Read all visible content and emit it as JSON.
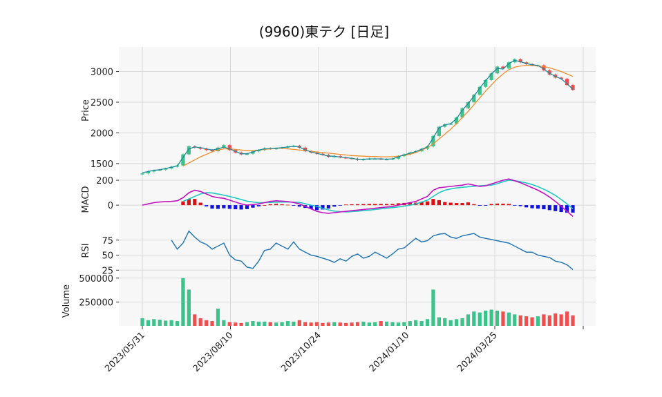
{
  "chart_data": {
    "type": "candlestick",
    "title": "(9960)東テク  [日足]",
    "x_ticks": [
      "2023/05/31",
      "2023/08/10",
      "2023/10/24",
      "2024/01/10",
      "2024/03/25"
    ],
    "price": {
      "ylabel": "Price",
      "yticks": [
        1500,
        2000,
        2500,
        3000
      ],
      "ylim": [
        1330,
        3400
      ],
      "close": [
        1340,
        1370,
        1390,
        1400,
        1420,
        1450,
        1470,
        1650,
        1780,
        1760,
        1740,
        1720,
        1700,
        1760,
        1800,
        1720,
        1680,
        1650,
        1660,
        1700,
        1720,
        1750,
        1740,
        1750,
        1760,
        1780,
        1790,
        1760,
        1700,
        1680,
        1660,
        1640,
        1610,
        1620,
        1600,
        1590,
        1580,
        1560,
        1570,
        1580,
        1580,
        1570,
        1570,
        1580,
        1620,
        1650,
        1680,
        1700,
        1740,
        1780,
        1950,
        2100,
        2140,
        2150,
        2250,
        2400,
        2500,
        2620,
        2750,
        2860,
        2970,
        3080,
        3050,
        3150,
        3200,
        3150,
        3120,
        3100,
        3100,
        3020,
        2950,
        2900,
        2880,
        2780,
        2700
      ],
      "ma_short_name": "",
      "ma_short": [
        1350,
        1370,
        1390,
        1400,
        1420,
        1440,
        1460,
        1600,
        1740,
        1770,
        1760,
        1740,
        1720,
        1740,
        1770,
        1740,
        1700,
        1660,
        1660,
        1690,
        1720,
        1740,
        1745,
        1750,
        1760,
        1770,
        1780,
        1770,
        1720,
        1690,
        1665,
        1645,
        1620,
        1620,
        1605,
        1595,
        1585,
        1570,
        1570,
        1575,
        1578,
        1575,
        1572,
        1578,
        1610,
        1640,
        1670,
        1695,
        1730,
        1770,
        1920,
        2080,
        2130,
        2150,
        2230,
        2370,
        2480,
        2600,
        2730,
        2850,
        2960,
        3050,
        3040,
        3130,
        3180,
        3160,
        3130,
        3110,
        3100,
        3040,
        2970,
        2920,
        2880,
        2800,
        2710
      ],
      "ma_long": [
        null,
        null,
        null,
        null,
        null,
        null,
        null,
        1460,
        1510,
        1560,
        1610,
        1650,
        1690,
        1720,
        1740,
        1740,
        1730,
        1720,
        1710,
        1710,
        1720,
        1730,
        1740,
        1750,
        1750,
        1740,
        1730,
        1720,
        1710,
        1700,
        1690,
        1680,
        1670,
        1660,
        1650,
        1640,
        1630,
        1625,
        1620,
        1615,
        1615,
        1610,
        1610,
        1612,
        1620,
        1635,
        1650,
        1680,
        1720,
        1760,
        1820,
        1900,
        1980,
        2060,
        2150,
        2250,
        2350,
        2460,
        2570,
        2680,
        2780,
        2880,
        2960,
        3030,
        3070,
        3090,
        3100,
        3100,
        3090,
        3080,
        3060,
        3030,
        3000,
        2960,
        2920
      ]
    },
    "macd": {
      "ylabel": "MACD",
      "yticks": [
        0,
        200
      ],
      "ylim": [
        -160,
        250
      ],
      "macd_line": [
        0,
        10,
        20,
        25,
        28,
        30,
        35,
        60,
        100,
        120,
        110,
        90,
        70,
        60,
        55,
        40,
        25,
        10,
        0,
        5,
        10,
        20,
        30,
        35,
        32,
        28,
        22,
        10,
        -10,
        -30,
        -50,
        -60,
        -65,
        -60,
        -55,
        -50,
        -45,
        -40,
        -35,
        -30,
        -25,
        -20,
        -15,
        -10,
        0,
        10,
        20,
        30,
        50,
        70,
        120,
        140,
        145,
        150,
        155,
        160,
        170,
        160,
        150,
        155,
        170,
        185,
        200,
        210,
        195,
        180,
        160,
        140,
        120,
        95,
        65,
        30,
        -10,
        -50,
        -90
      ],
      "signal_line": [
        null,
        null,
        null,
        null,
        null,
        null,
        null,
        30,
        50,
        70,
        90,
        100,
        98,
        90,
        80,
        70,
        58,
        45,
        32,
        25,
        20,
        20,
        22,
        24,
        25,
        25,
        24,
        22,
        12,
        0,
        -10,
        -25,
        -38,
        -48,
        -52,
        -55,
        -52,
        -48,
        -44,
        -40,
        -35,
        -30,
        -25,
        -20,
        -15,
        -8,
        0,
        10,
        25,
        40,
        70,
        100,
        120,
        130,
        138,
        143,
        148,
        152,
        155,
        158,
        160,
        172,
        188,
        200,
        196,
        188,
        178,
        165,
        148,
        128,
        105,
        78,
        45,
        10,
        -30
      ]
    },
    "rsi": {
      "ylabel": "RSI",
      "yticks": [
        25,
        50,
        75
      ],
      "ylim": [
        15,
        100
      ],
      "values": [
        null,
        null,
        null,
        null,
        null,
        75,
        60,
        70,
        90,
        80,
        72,
        68,
        60,
        65,
        70,
        50,
        42,
        40,
        30,
        28,
        40,
        58,
        60,
        70,
        65,
        60,
        72,
        60,
        55,
        50,
        48,
        45,
        42,
        38,
        44,
        40,
        48,
        52,
        45,
        48,
        55,
        50,
        45,
        52,
        60,
        62,
        70,
        78,
        72,
        74,
        82,
        85,
        86,
        80,
        78,
        82,
        84,
        86,
        80,
        78,
        76,
        74,
        72,
        70,
        65,
        60,
        55,
        55,
        50,
        48,
        46,
        40,
        38,
        34,
        26
      ]
    },
    "volume": {
      "ylabel": "Volume",
      "yticks": [
        250000,
        500000
      ],
      "ylim": [
        0,
        520000
      ],
      "values": [
        80000,
        60000,
        70000,
        65000,
        55000,
        60000,
        50000,
        500000,
        380000,
        120000,
        80000,
        60000,
        50000,
        180000,
        60000,
        40000,
        35000,
        30000,
        40000,
        50000,
        45000,
        45000,
        40000,
        35000,
        40000,
        50000,
        45000,
        60000,
        40000,
        35000,
        40000,
        30000,
        35000,
        40000,
        35000,
        30000,
        35000,
        40000,
        45000,
        35000,
        40000,
        50000,
        45000,
        40000,
        35000,
        40000,
        50000,
        60000,
        50000,
        70000,
        380000,
        90000,
        80000,
        60000,
        70000,
        80000,
        120000,
        150000,
        140000,
        160000,
        170000,
        160000,
        150000,
        140000,
        120000,
        110000,
        100000,
        90000,
        100000,
        120000,
        110000,
        130000,
        120000,
        150000,
        110000
      ]
    },
    "colors": {
      "up": "#3cc28a",
      "down": "#ef4f4f",
      "ma_short": "#1f8a9a",
      "ma_long": "#f28e2b",
      "macd_line": "#c211c2",
      "signal_line": "#1fc9c1",
      "hist_pos": "#dd1111",
      "hist_neg": "#1111dd",
      "rsi": "#2778b3",
      "panel_bg": "#f7f7f7",
      "grid": "#d9d9d9"
    }
  }
}
